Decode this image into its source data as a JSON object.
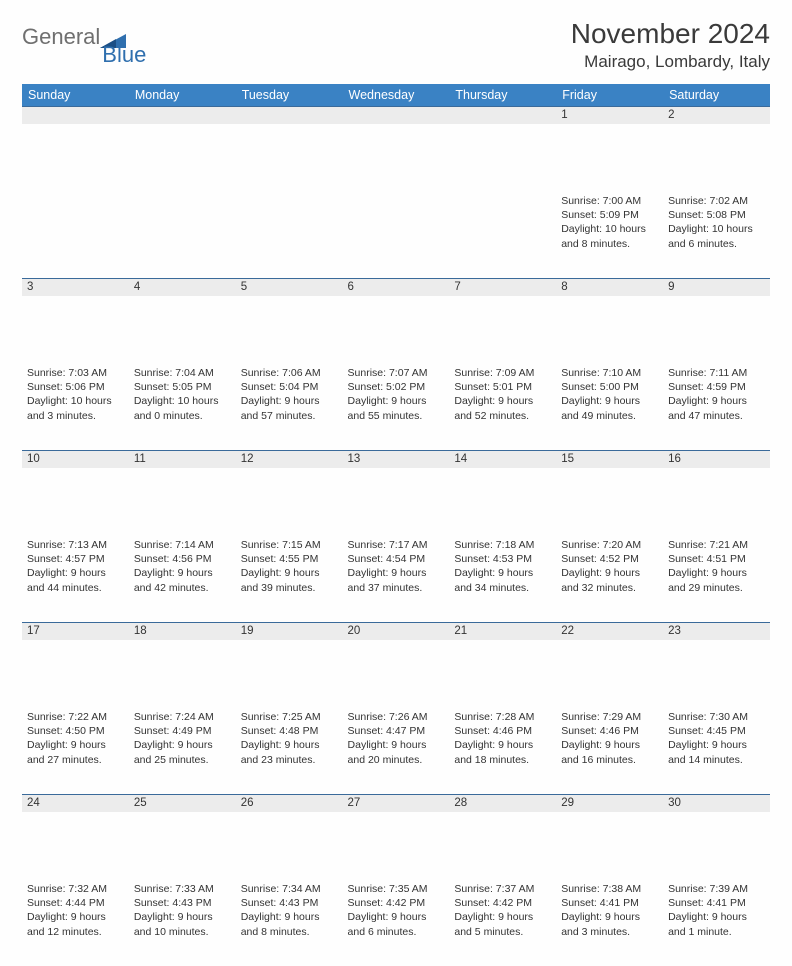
{
  "brand": {
    "word1": "General",
    "word2": "Blue"
  },
  "header": {
    "title": "November 2024",
    "location": "Mairago, Lombardy, Italy"
  },
  "colors": {
    "header_bg": "#3a82c4",
    "header_text": "#ffffff",
    "daynum_bg": "#ececec",
    "rule": "#3a6a9a",
    "logo_gray": "#6f6f6f",
    "logo_blue": "#2f6fae"
  },
  "daynames": [
    "Sunday",
    "Monday",
    "Tuesday",
    "Wednesday",
    "Thursday",
    "Friday",
    "Saturday"
  ],
  "weeks": [
    [
      null,
      null,
      null,
      null,
      null,
      {
        "n": "1",
        "sr": "Sunrise: 7:00 AM",
        "ss": "Sunset: 5:09 PM",
        "dl": "Daylight: 10 hours and 8 minutes."
      },
      {
        "n": "2",
        "sr": "Sunrise: 7:02 AM",
        "ss": "Sunset: 5:08 PM",
        "dl": "Daylight: 10 hours and 6 minutes."
      }
    ],
    [
      {
        "n": "3",
        "sr": "Sunrise: 7:03 AM",
        "ss": "Sunset: 5:06 PM",
        "dl": "Daylight: 10 hours and 3 minutes."
      },
      {
        "n": "4",
        "sr": "Sunrise: 7:04 AM",
        "ss": "Sunset: 5:05 PM",
        "dl": "Daylight: 10 hours and 0 minutes."
      },
      {
        "n": "5",
        "sr": "Sunrise: 7:06 AM",
        "ss": "Sunset: 5:04 PM",
        "dl": "Daylight: 9 hours and 57 minutes."
      },
      {
        "n": "6",
        "sr": "Sunrise: 7:07 AM",
        "ss": "Sunset: 5:02 PM",
        "dl": "Daylight: 9 hours and 55 minutes."
      },
      {
        "n": "7",
        "sr": "Sunrise: 7:09 AM",
        "ss": "Sunset: 5:01 PM",
        "dl": "Daylight: 9 hours and 52 minutes."
      },
      {
        "n": "8",
        "sr": "Sunrise: 7:10 AM",
        "ss": "Sunset: 5:00 PM",
        "dl": "Daylight: 9 hours and 49 minutes."
      },
      {
        "n": "9",
        "sr": "Sunrise: 7:11 AM",
        "ss": "Sunset: 4:59 PM",
        "dl": "Daylight: 9 hours and 47 minutes."
      }
    ],
    [
      {
        "n": "10",
        "sr": "Sunrise: 7:13 AM",
        "ss": "Sunset: 4:57 PM",
        "dl": "Daylight: 9 hours and 44 minutes."
      },
      {
        "n": "11",
        "sr": "Sunrise: 7:14 AM",
        "ss": "Sunset: 4:56 PM",
        "dl": "Daylight: 9 hours and 42 minutes."
      },
      {
        "n": "12",
        "sr": "Sunrise: 7:15 AM",
        "ss": "Sunset: 4:55 PM",
        "dl": "Daylight: 9 hours and 39 minutes."
      },
      {
        "n": "13",
        "sr": "Sunrise: 7:17 AM",
        "ss": "Sunset: 4:54 PM",
        "dl": "Daylight: 9 hours and 37 minutes."
      },
      {
        "n": "14",
        "sr": "Sunrise: 7:18 AM",
        "ss": "Sunset: 4:53 PM",
        "dl": "Daylight: 9 hours and 34 minutes."
      },
      {
        "n": "15",
        "sr": "Sunrise: 7:20 AM",
        "ss": "Sunset: 4:52 PM",
        "dl": "Daylight: 9 hours and 32 minutes."
      },
      {
        "n": "16",
        "sr": "Sunrise: 7:21 AM",
        "ss": "Sunset: 4:51 PM",
        "dl": "Daylight: 9 hours and 29 minutes."
      }
    ],
    [
      {
        "n": "17",
        "sr": "Sunrise: 7:22 AM",
        "ss": "Sunset: 4:50 PM",
        "dl": "Daylight: 9 hours and 27 minutes."
      },
      {
        "n": "18",
        "sr": "Sunrise: 7:24 AM",
        "ss": "Sunset: 4:49 PM",
        "dl": "Daylight: 9 hours and 25 minutes."
      },
      {
        "n": "19",
        "sr": "Sunrise: 7:25 AM",
        "ss": "Sunset: 4:48 PM",
        "dl": "Daylight: 9 hours and 23 minutes."
      },
      {
        "n": "20",
        "sr": "Sunrise: 7:26 AM",
        "ss": "Sunset: 4:47 PM",
        "dl": "Daylight: 9 hours and 20 minutes."
      },
      {
        "n": "21",
        "sr": "Sunrise: 7:28 AM",
        "ss": "Sunset: 4:46 PM",
        "dl": "Daylight: 9 hours and 18 minutes."
      },
      {
        "n": "22",
        "sr": "Sunrise: 7:29 AM",
        "ss": "Sunset: 4:46 PM",
        "dl": "Daylight: 9 hours and 16 minutes."
      },
      {
        "n": "23",
        "sr": "Sunrise: 7:30 AM",
        "ss": "Sunset: 4:45 PM",
        "dl": "Daylight: 9 hours and 14 minutes."
      }
    ],
    [
      {
        "n": "24",
        "sr": "Sunrise: 7:32 AM",
        "ss": "Sunset: 4:44 PM",
        "dl": "Daylight: 9 hours and 12 minutes."
      },
      {
        "n": "25",
        "sr": "Sunrise: 7:33 AM",
        "ss": "Sunset: 4:43 PM",
        "dl": "Daylight: 9 hours and 10 minutes."
      },
      {
        "n": "26",
        "sr": "Sunrise: 7:34 AM",
        "ss": "Sunset: 4:43 PM",
        "dl": "Daylight: 9 hours and 8 minutes."
      },
      {
        "n": "27",
        "sr": "Sunrise: 7:35 AM",
        "ss": "Sunset: 4:42 PM",
        "dl": "Daylight: 9 hours and 6 minutes."
      },
      {
        "n": "28",
        "sr": "Sunrise: 7:37 AM",
        "ss": "Sunset: 4:42 PM",
        "dl": "Daylight: 9 hours and 5 minutes."
      },
      {
        "n": "29",
        "sr": "Sunrise: 7:38 AM",
        "ss": "Sunset: 4:41 PM",
        "dl": "Daylight: 9 hours and 3 minutes."
      },
      {
        "n": "30",
        "sr": "Sunrise: 7:39 AM",
        "ss": "Sunset: 4:41 PM",
        "dl": "Daylight: 9 hours and 1 minute."
      }
    ]
  ]
}
